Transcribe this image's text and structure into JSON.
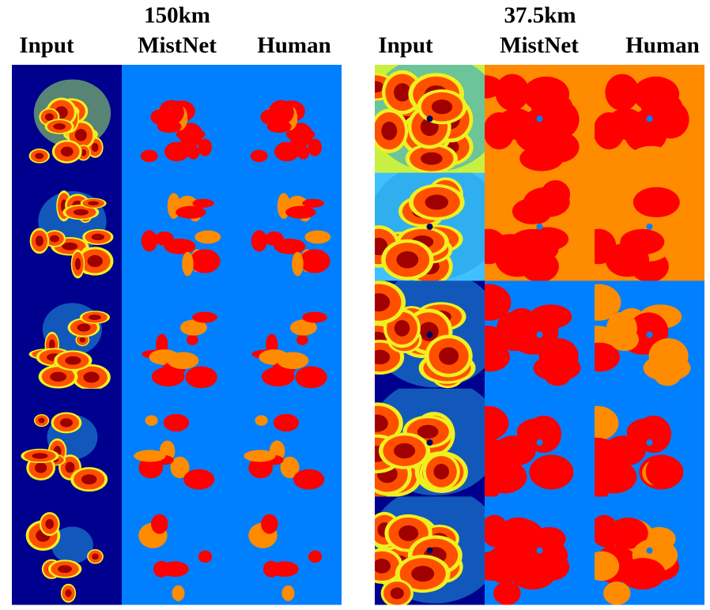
{
  "left_panel": {
    "title": "150km",
    "columns": [
      "Input",
      "MistNet",
      "Human"
    ]
  },
  "right_panel": {
    "title": "37.5km",
    "columns": [
      "Input",
      "MistNet",
      "Human"
    ]
  }
}
